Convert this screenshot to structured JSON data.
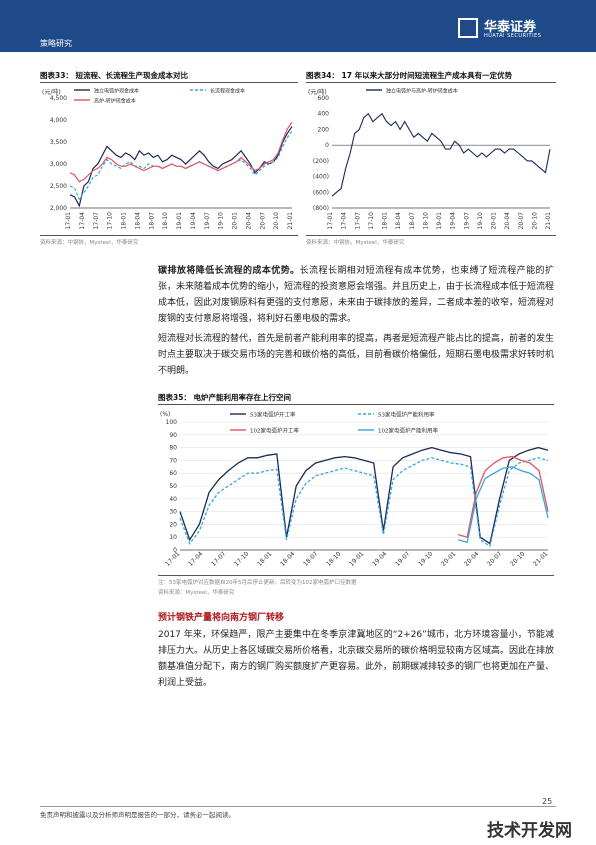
{
  "header": {
    "section": "策略研究",
    "logo_name": "华泰证券",
    "logo_en": "HUATAI SECURITIES",
    "brand_color": "#1f4a8a"
  },
  "figure33": {
    "title": "图表33：  短流程、长流程生产现金成本对比",
    "unit": "(元/吨)",
    "source": "资料来源：中钢协，Mysteel，华泰研究"
  },
  "figure34": {
    "title": "图表34：  17 年以来大部分时间短流程生产成本具有一定优势",
    "unit": "(元/吨)",
    "source": "资料来源：中钢协，Mysteel，华泰研究"
  },
  "para1": {
    "lead": "碳排放将降低长流程的成本优势。",
    "text": "长流程长期相对短流程有成本优势，也束缚了短流程产能的扩张，未来随着成本优势的缩小，短流程的投资意愿会增强。并且历史上，由于长流程成本低于短流程成本低，因此对废钢原料有更强的支付意愿，未来由于碳排放的差异，二者成本差的收窄，短流程对废钢的支付意愿将增强，将利好石墨电极的需求。"
  },
  "para2": "短流程对长流程的替代，首先是前者产能利用率的提高，再者是短流程产能占比的提高，前者的发生时点主要取决于碳交易市场的完善和碳价格的高低，目前看碳价格偏低，短期石墨电极需求好转时机不明朗。",
  "figure35": {
    "title": "图表35：  电炉产能利用率存在上行空间",
    "unit": "(%)",
    "note": "注：53家电弧炉对应数据自20年5月后停止更新，后转变为102家电弧炉口径数据",
    "source": "资料来源：Mysteel，华泰研究"
  },
  "subhead": "预计钢铁产量将向南方钢厂转移",
  "para3": "2017 年来，环保趋严，限产主要集中在冬季京津冀地区的“2+26”城市，北方环境容量小，节能减排压力大。从历史上各区域碳交易所价格看，北京碳交易所的碳价格明显较南方区域高。因此在排放额基准值分配下，南方的钢厂购买额度扩产更容易。此外，前期碳减排较多的钢厂也将更加在产量、利润上受益。",
  "footer": {
    "disclaimer": "免责声明和披露以及分析师声明是报告的一部分，请务必一起阅读。",
    "page": "25",
    "watermark": "技术开发网"
  },
  "colors": {
    "dark_blue": "#1b2a57",
    "light_blue": "#35a7dd",
    "red": "#e2545f",
    "teal": "#4fb9b0"
  },
  "chart_data": [
    {
      "type": "line",
      "x_ticks": [
        "17-01",
        "17-04",
        "17-07",
        "17-10",
        "18-01",
        "18-04",
        "18-07",
        "18-10",
        "19-01",
        "19-04",
        "19-07",
        "19-10",
        "20-01",
        "20-04",
        "20-07",
        "20-10",
        "21-01"
      ],
      "ylim": [
        2000,
        4500
      ],
      "y_ticks": [
        "2,000",
        "2,500",
        "3,000",
        "3,500",
        "4,000",
        "4,500"
      ],
      "series": [
        {
          "name": "独立电弧炉现金成本",
          "color": "#1b2a57",
          "dash": "solid",
          "values": [
            2300,
            2250,
            2050,
            2500,
            2600,
            2900,
            3000,
            3200,
            3400,
            3300,
            3200,
            3150,
            3250,
            3200,
            3100,
            3300,
            3200,
            3250,
            3150,
            3200,
            3050,
            3100,
            3200,
            3150,
            3100,
            3000,
            3100,
            3200,
            3300,
            3200,
            3050,
            2950,
            2900,
            3000,
            3050,
            3100,
            3200,
            3300,
            3150,
            3000,
            2800,
            2900,
            3050,
            3000,
            3050,
            3200,
            3500,
            3700,
            3850
          ]
        },
        {
          "name": "长流程现金成本",
          "color": "#35a7dd",
          "dash": "dashed",
          "values": [
            2500,
            2450,
            2200,
            2350,
            2500,
            2700,
            2750,
            2950,
            3100,
            3000,
            2950,
            2900,
            3000,
            3050,
            2950,
            2950,
            2900,
            3000,
            2950,
            2950,
            2900,
            2950,
            3000,
            2950,
            2950,
            2900,
            2950,
            3000,
            3050,
            3000,
            2950,
            2900,
            2850,
            2900,
            2950,
            3000,
            3050,
            3100,
            3000,
            2900,
            2750,
            2850,
            2950,
            3000,
            3050,
            3150,
            3400,
            3600,
            3750
          ]
        },
        {
          "name": "高炉-转炉现金成本",
          "color": "#e2545f",
          "dash": "solid",
          "values": [
            2800,
            2750,
            2600,
            2650,
            2750,
            2850,
            2900,
            3000,
            3150,
            3100,
            3000,
            2950,
            2950,
            3000,
            2950,
            2900,
            2850,
            2900,
            2950,
            2950,
            2900,
            2950,
            3000,
            2950,
            2950,
            2900,
            2950,
            3000,
            3050,
            3000,
            2950,
            2900,
            2850,
            2900,
            2950,
            3000,
            3050,
            3150,
            3050,
            2950,
            2850,
            2900,
            3000,
            3050,
            3100,
            3250,
            3550,
            3800,
            3950
          ]
        }
      ]
    },
    {
      "type": "line",
      "x_ticks": [
        "17-01",
        "17-04",
        "17-07",
        "17-10",
        "18-01",
        "18-04",
        "18-07",
        "18-10",
        "19-01",
        "19-04",
        "19-07",
        "19-10",
        "20-01",
        "20-04",
        "20-07",
        "20-10",
        "21-01"
      ],
      "ylim": [
        -800,
        600
      ],
      "y_ticks": [
        "(800)",
        "(600)",
        "(400)",
        "(200)",
        "0",
        "200",
        "400",
        "600"
      ],
      "series": [
        {
          "name": "独立电弧炉与高炉-转炉现金成本",
          "color": "#1b2a57",
          "values": [
            -650,
            -600,
            -550,
            -300,
            -100,
            150,
            200,
            350,
            400,
            300,
            350,
            400,
            300,
            250,
            300,
            200,
            300,
            200,
            100,
            150,
            100,
            50,
            150,
            100,
            50,
            -50,
            -50,
            50,
            0,
            -100,
            -50,
            -100,
            -150,
            -100,
            -150,
            -100,
            -50,
            -50,
            -100,
            -50,
            -50,
            -100,
            -150,
            -200,
            -200,
            -250,
            -300,
            -350,
            -50
          ]
        }
      ]
    },
    {
      "type": "line",
      "x_ticks": [
        "17-01",
        "17-04",
        "17-07",
        "17-10",
        "18-01",
        "18-04",
        "18-07",
        "18-10",
        "19-01",
        "19-04",
        "19-07",
        "19-10",
        "20-01",
        "20-04",
        "20-07",
        "20-10",
        "21-01"
      ],
      "ylim": [
        0,
        100
      ],
      "y_ticks": [
        "0",
        "10",
        "20",
        "30",
        "40",
        "50",
        "60",
        "70",
        "80",
        "90",
        "100"
      ],
      "series": [
        {
          "name": "53家电弧炉开工率",
          "color": "#1b2a57",
          "dash": "solid",
          "values": [
            30,
            8,
            20,
            45,
            55,
            62,
            68,
            72,
            72,
            74,
            75,
            10,
            50,
            62,
            68,
            70,
            72,
            73,
            72,
            70,
            68,
            15,
            65,
            72,
            75,
            78,
            80,
            78,
            76,
            75,
            73,
            10,
            5,
            40,
            70,
            75,
            78,
            80,
            78
          ]
        },
        {
          "name": "53家电弧炉产能利用率",
          "color": "#35a7dd",
          "dash": "dashed",
          "values": [
            25,
            5,
            15,
            35,
            45,
            50,
            55,
            60,
            60,
            62,
            63,
            8,
            40,
            52,
            58,
            60,
            62,
            64,
            62,
            60,
            58,
            12,
            55,
            62,
            66,
            70,
            72,
            70,
            68,
            67,
            65,
            8,
            3,
            35,
            62,
            68,
            70,
            72,
            70
          ]
        },
        {
          "name": "102家电弧炉开工率",
          "color": "#e2545f",
          "dash": "solid",
          "values": [
            null,
            null,
            null,
            null,
            null,
            null,
            null,
            null,
            null,
            null,
            null,
            null,
            null,
            null,
            null,
            null,
            null,
            null,
            null,
            null,
            null,
            null,
            null,
            null,
            null,
            null,
            null,
            null,
            null,
            null,
            null,
            12,
            10,
            45,
            62,
            68,
            72,
            73,
            70,
            68,
            62,
            30
          ]
        },
        {
          "name": "102家电弧炉产能利用率",
          "color": "#35a7dd",
          "dash": "solid",
          "values": [
            null,
            null,
            null,
            null,
            null,
            null,
            null,
            null,
            null,
            null,
            null,
            null,
            null,
            null,
            null,
            null,
            null,
            null,
            null,
            null,
            null,
            null,
            null,
            null,
            null,
            null,
            null,
            null,
            null,
            null,
            null,
            8,
            6,
            40,
            56,
            60,
            64,
            65,
            62,
            60,
            55,
            25
          ]
        }
      ]
    }
  ]
}
